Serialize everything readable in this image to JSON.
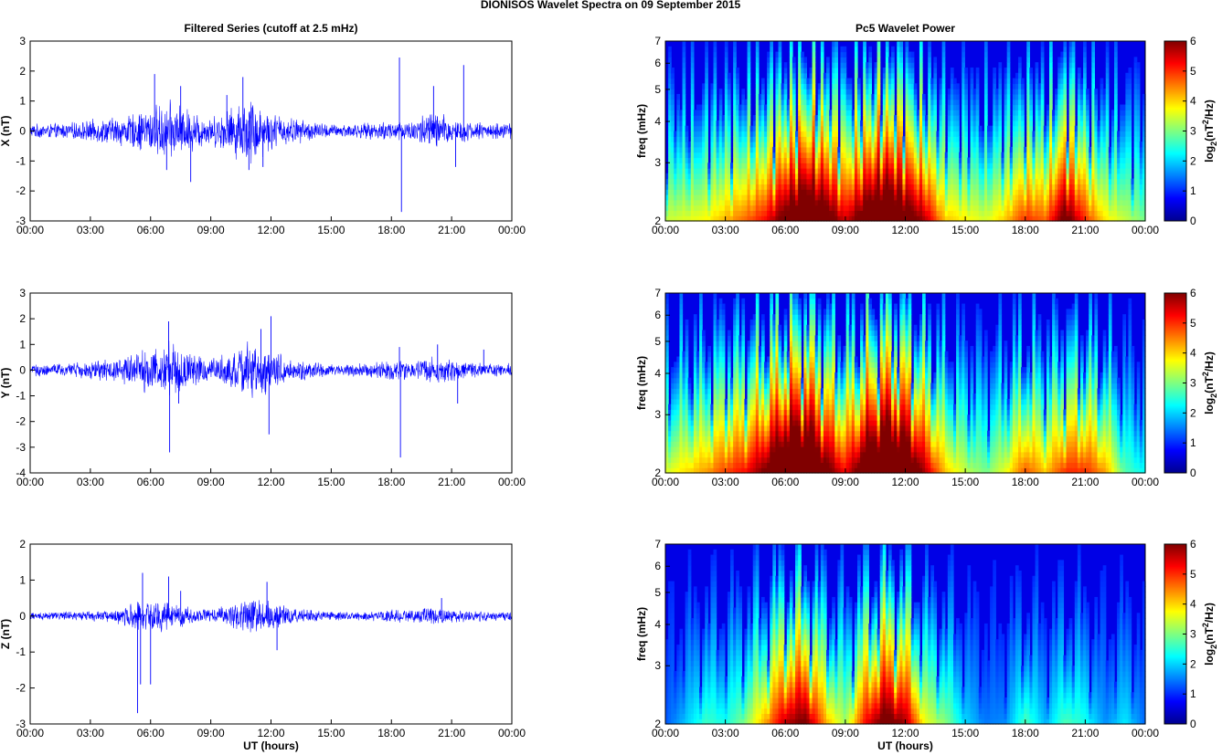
{
  "figure_title": "DIONISOS Wavelet Spectra on 09 September 2015",
  "colors": {
    "trace": "#0000ff",
    "axes": "#000000",
    "background": "#ffffff"
  },
  "chart_data": [
    {
      "id": "x-series",
      "type": "line",
      "title": "Filtered Series (cutoff at 2.5 mHz)",
      "xlabel": "",
      "ylabel": "X (nT)",
      "xlim": [
        0,
        24
      ],
      "ylim": [
        -3,
        3
      ],
      "x_ticks": [
        "00:00",
        "03:00",
        "06:00",
        "09:00",
        "12:00",
        "15:00",
        "18:00",
        "21:00",
        "00:00"
      ],
      "y_ticks": [
        "3",
        "2",
        "1",
        "0",
        "-1",
        "-2",
        "-3"
      ],
      "envelope": [
        [
          0,
          0.25
        ],
        [
          2,
          0.3
        ],
        [
          4,
          0.5
        ],
        [
          5,
          0.6
        ],
        [
          6,
          0.9
        ],
        [
          7,
          1.1
        ],
        [
          8,
          0.8
        ],
        [
          9,
          0.5
        ],
        [
          10,
          0.9
        ],
        [
          11,
          1.3
        ],
        [
          12,
          0.7
        ],
        [
          13,
          0.5
        ],
        [
          15,
          0.25
        ],
        [
          17,
          0.3
        ],
        [
          18,
          0.4
        ],
        [
          19,
          0.4
        ],
        [
          20,
          0.8
        ],
        [
          21,
          0.5
        ],
        [
          22,
          0.35
        ],
        [
          23,
          0.3
        ],
        [
          24,
          0.3
        ]
      ],
      "spikes": [
        [
          6.2,
          1.9
        ],
        [
          6.8,
          -1.3
        ],
        [
          7.5,
          1.5
        ],
        [
          8.0,
          -1.7
        ],
        [
          9.8,
          1.2
        ],
        [
          10.6,
          1.8
        ],
        [
          10.9,
          -1.3
        ],
        [
          11.6,
          -1.2
        ],
        [
          18.4,
          2.45
        ],
        [
          18.5,
          -2.7
        ],
        [
          20.1,
          1.5
        ],
        [
          21.6,
          2.2
        ],
        [
          21.2,
          -1.2
        ]
      ]
    },
    {
      "id": "x-power",
      "type": "heatmap",
      "title": "Pc5 Wavelet Power",
      "xlabel": "",
      "ylabel": "freq (mHz)",
      "colorbar_label": "log2(nT^2/Hz)",
      "xlim": [
        0,
        24
      ],
      "ylim": [
        2,
        7
      ],
      "log_y": true,
      "clim": [
        0,
        6
      ],
      "x_ticks": [
        "00:00",
        "03:00",
        "06:00",
        "09:00",
        "12:00",
        "15:00",
        "18:00",
        "21:00",
        "00:00"
      ],
      "y_ticks": [
        "7",
        "6",
        "5",
        "4",
        "3",
        "2"
      ],
      "colorbar_ticks": [
        "6",
        "5",
        "4",
        "3",
        "2",
        "1",
        "0"
      ],
      "activity": [
        [
          0,
          2.2
        ],
        [
          2,
          2.5
        ],
        [
          4,
          3.3
        ],
        [
          5,
          3.8
        ],
        [
          6,
          4.8
        ],
        [
          7,
          5.5
        ],
        [
          8,
          5.0
        ],
        [
          9,
          4.0
        ],
        [
          10,
          5.0
        ],
        [
          11,
          5.6
        ],
        [
          12,
          5.0
        ],
        [
          13,
          4.2
        ],
        [
          14,
          2.8
        ],
        [
          16,
          2.3
        ],
        [
          17,
          2.8
        ],
        [
          18,
          3.6
        ],
        [
          19,
          3.3
        ],
        [
          20,
          4.8
        ],
        [
          21,
          3.6
        ],
        [
          22,
          2.6
        ],
        [
          23,
          2.2
        ],
        [
          24,
          1.8
        ]
      ]
    },
    {
      "id": "y-series",
      "type": "line",
      "title": "",
      "xlabel": "",
      "ylabel": "Y (nT)",
      "xlim": [
        0,
        24
      ],
      "ylim": [
        -4,
        3
      ],
      "x_ticks": [
        "00:00",
        "03:00",
        "06:00",
        "09:00",
        "12:00",
        "15:00",
        "18:00",
        "21:00",
        "00:00"
      ],
      "y_ticks": [
        "3",
        "2",
        "1",
        "0",
        "-1",
        "-2",
        "-3",
        "-4"
      ],
      "envelope": [
        [
          0,
          0.25
        ],
        [
          2,
          0.3
        ],
        [
          4,
          0.5
        ],
        [
          5,
          0.7
        ],
        [
          6,
          1.0
        ],
        [
          7,
          1.3
        ],
        [
          8,
          0.7
        ],
        [
          9,
          0.5
        ],
        [
          10,
          0.8
        ],
        [
          11,
          1.3
        ],
        [
          12,
          0.9
        ],
        [
          13,
          0.5
        ],
        [
          15,
          0.25
        ],
        [
          17,
          0.3
        ],
        [
          18,
          0.5
        ],
        [
          19,
          0.4
        ],
        [
          20,
          0.6
        ],
        [
          21,
          0.45
        ],
        [
          22,
          0.3
        ],
        [
          24,
          0.3
        ]
      ],
      "spikes": [
        [
          6.9,
          1.9
        ],
        [
          6.95,
          -3.2
        ],
        [
          7.4,
          -1.3
        ],
        [
          11.5,
          1.6
        ],
        [
          12.0,
          2.1
        ],
        [
          11.9,
          -2.5
        ],
        [
          18.4,
          0.9
        ],
        [
          18.45,
          -3.4
        ],
        [
          20.3,
          1.0
        ],
        [
          21.3,
          -1.3
        ],
        [
          22.6,
          0.8
        ]
      ]
    },
    {
      "id": "y-power",
      "type": "heatmap",
      "title": "",
      "xlabel": "",
      "ylabel": "freq (mHz)",
      "colorbar_label": "log2(nT^2/Hz)",
      "xlim": [
        0,
        24
      ],
      "ylim": [
        2,
        7
      ],
      "log_y": true,
      "clim": [
        0,
        6
      ],
      "x_ticks": [
        "00:00",
        "03:00",
        "06:00",
        "09:00",
        "12:00",
        "15:00",
        "18:00",
        "21:00",
        "00:00"
      ],
      "y_ticks": [
        "7",
        "6",
        "5",
        "4",
        "3",
        "2"
      ],
      "colorbar_ticks": [
        "6",
        "5",
        "4",
        "3",
        "2",
        "1",
        "0"
      ],
      "activity": [
        [
          0,
          2.3
        ],
        [
          2,
          3.0
        ],
        [
          3,
          3.5
        ],
        [
          4,
          3.8
        ],
        [
          5,
          4.6
        ],
        [
          6,
          5.7
        ],
        [
          7,
          6.0
        ],
        [
          8,
          4.8
        ],
        [
          9,
          3.8
        ],
        [
          10,
          5.2
        ],
        [
          11,
          6.0
        ],
        [
          12,
          5.5
        ],
        [
          13,
          4.2
        ],
        [
          14,
          2.8
        ],
        [
          15,
          2.2
        ],
        [
          16,
          1.8
        ],
        [
          17,
          2.4
        ],
        [
          18,
          3.4
        ],
        [
          19,
          2.8
        ],
        [
          20,
          3.6
        ],
        [
          21,
          3.6
        ],
        [
          22,
          3.0
        ],
        [
          23,
          1.6
        ],
        [
          24,
          1.2
        ]
      ]
    },
    {
      "id": "z-series",
      "type": "line",
      "title": "",
      "xlabel": "UT (hours)",
      "ylabel": "Z (nT)",
      "xlim": [
        0,
        24
      ],
      "ylim": [
        -3,
        2
      ],
      "x_ticks": [
        "00:00",
        "03:00",
        "06:00",
        "09:00",
        "12:00",
        "15:00",
        "18:00",
        "21:00",
        "00:00"
      ],
      "y_ticks": [
        "2",
        "1",
        "0",
        "-1",
        "-2",
        "-3"
      ],
      "envelope": [
        [
          0,
          0.12
        ],
        [
          3,
          0.15
        ],
        [
          4,
          0.2
        ],
        [
          5,
          0.4
        ],
        [
          6,
          0.5
        ],
        [
          7,
          0.45
        ],
        [
          8,
          0.3
        ],
        [
          9,
          0.2
        ],
        [
          10,
          0.35
        ],
        [
          11,
          0.55
        ],
        [
          12,
          0.45
        ],
        [
          13,
          0.25
        ],
        [
          15,
          0.12
        ],
        [
          17,
          0.15
        ],
        [
          18,
          0.2
        ],
        [
          19,
          0.2
        ],
        [
          20,
          0.3
        ],
        [
          21,
          0.22
        ],
        [
          22,
          0.15
        ],
        [
          24,
          0.15
        ]
      ],
      "spikes": [
        [
          5.35,
          -2.7
        ],
        [
          5.5,
          -1.9
        ],
        [
          5.6,
          1.2
        ],
        [
          6.0,
          -1.9
        ],
        [
          6.9,
          1.1
        ],
        [
          7.5,
          0.7
        ],
        [
          11.8,
          0.95
        ],
        [
          12.3,
          -0.95
        ],
        [
          20.5,
          0.5
        ]
      ]
    },
    {
      "id": "z-power",
      "type": "heatmap",
      "title": "",
      "xlabel": "UT (hours)",
      "ylabel": "freq (mHz)",
      "colorbar_label": "log2(nT^2/Hz)",
      "xlim": [
        0,
        24
      ],
      "ylim": [
        2,
        7
      ],
      "log_y": true,
      "clim": [
        0,
        6
      ],
      "x_ticks": [
        "00:00",
        "03:00",
        "06:00",
        "09:00",
        "12:00",
        "15:00",
        "18:00",
        "21:00",
        "00:00"
      ],
      "y_ticks": [
        "7",
        "6",
        "5",
        "4",
        "3",
        "2"
      ],
      "colorbar_ticks": [
        "6",
        "5",
        "4",
        "3",
        "2",
        "1",
        "0"
      ],
      "activity": [
        [
          0,
          0.3
        ],
        [
          2,
          1.5
        ],
        [
          3,
          1.3
        ],
        [
          4,
          1.9
        ],
        [
          5,
          3.0
        ],
        [
          6,
          4.2
        ],
        [
          7,
          4.6
        ],
        [
          8,
          3.0
        ],
        [
          9,
          2.0
        ],
        [
          10,
          3.8
        ],
        [
          11,
          4.8
        ],
        [
          12,
          4.3
        ],
        [
          13,
          2.4
        ],
        [
          14,
          1.9
        ],
        [
          15,
          1.0
        ],
        [
          16,
          0.5
        ],
        [
          17,
          0.6
        ],
        [
          18,
          1.6
        ],
        [
          19,
          0.8
        ],
        [
          20,
          1.6
        ],
        [
          21,
          1.3
        ],
        [
          22,
          0.6
        ],
        [
          23,
          1.1
        ],
        [
          24,
          0.4
        ]
      ]
    }
  ]
}
